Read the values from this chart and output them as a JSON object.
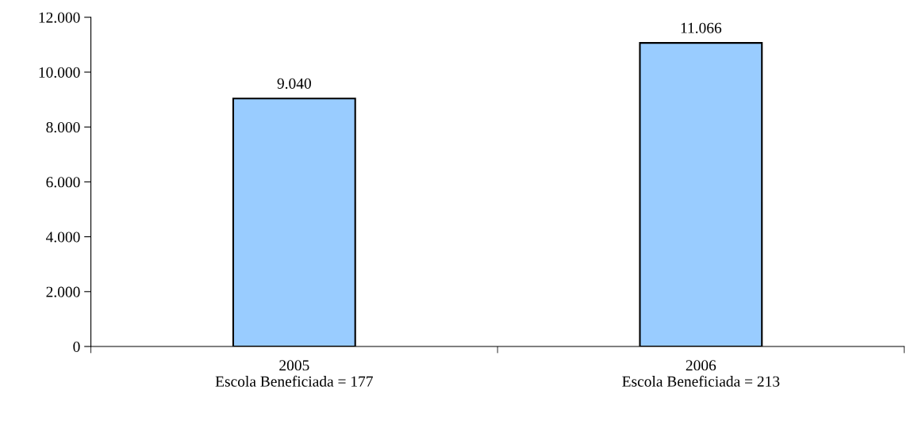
{
  "chart_data": {
    "type": "bar",
    "categories": [
      "2005\nEscola Beneficiada = 177",
      "2006\nEscola Beneficiada = 213"
    ],
    "values": [
      9040,
      11066
    ],
    "value_labels": [
      "9.040",
      "11.066"
    ],
    "color": "#99ccff",
    "ylim": [
      0,
      12000
    ],
    "yticks": [
      {
        "value": 0,
        "label": "0"
      },
      {
        "value": 2000,
        "label": "2.000"
      },
      {
        "value": 4000,
        "label": "4.000"
      },
      {
        "value": 6000,
        "label": "6.000"
      },
      {
        "value": 8000,
        "label": "8.000"
      },
      {
        "value": 10000,
        "label": "10.000"
      },
      {
        "value": 12000,
        "label": "12.000"
      }
    ],
    "grid": false,
    "legend": false
  }
}
